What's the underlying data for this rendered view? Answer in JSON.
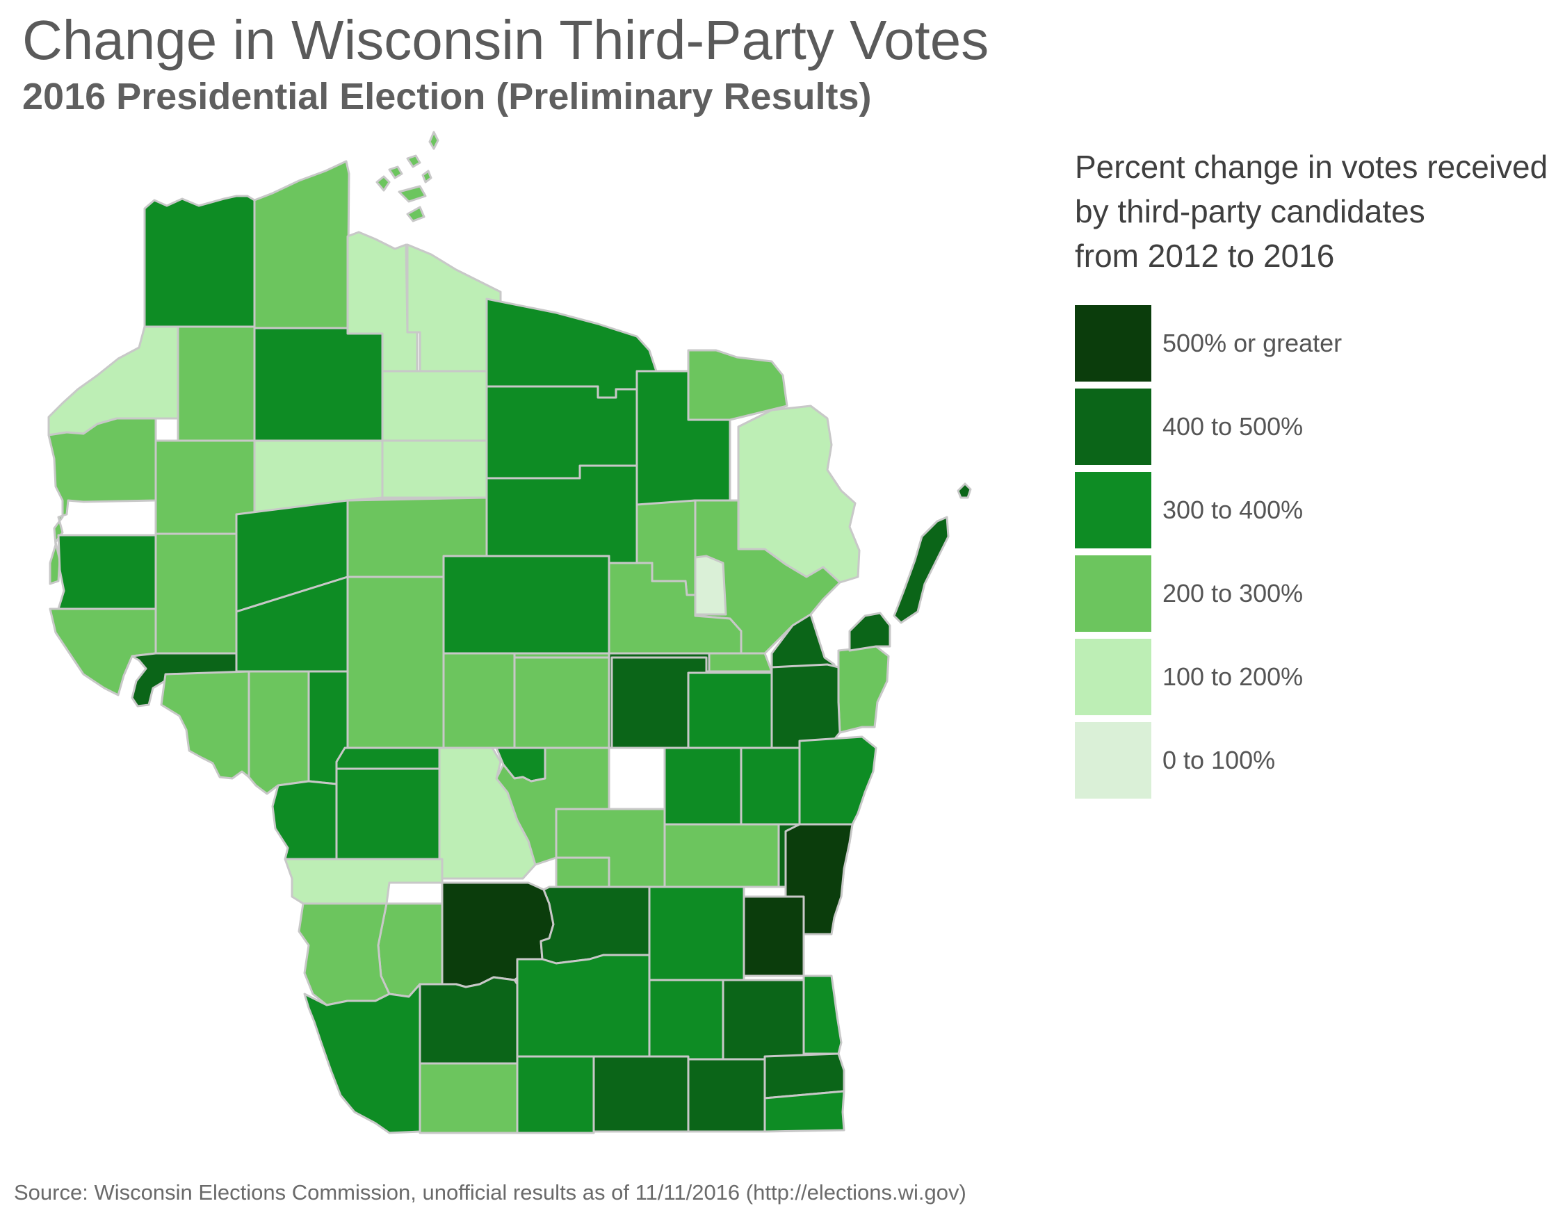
{
  "title": "Change in Wisconsin Third-Party Votes",
  "subtitle": "2016 Presidential Election (Preliminary Results)",
  "legend": {
    "title_lines": [
      "Percent change in votes received",
      "by third-party candidates",
      "from 2012 to 2016"
    ],
    "classes": [
      {
        "label": "500% or greater",
        "color": "#0b3d0c"
      },
      {
        "label": "400 to 500%",
        "color": "#0b6518"
      },
      {
        "label": "300 to 400%",
        "color": "#0e8c24"
      },
      {
        "label": "200 to 300%",
        "color": "#6cc55e"
      },
      {
        "label": "100 to 200%",
        "color": "#bdeeb5"
      },
      {
        "label": "0 to 100%",
        "color": "#daf0d7"
      }
    ]
  },
  "source": "Source: Wisconsin Elections Commission, unofficial results as of 11/11/2016 (http://elections.wi.gov)"
}
